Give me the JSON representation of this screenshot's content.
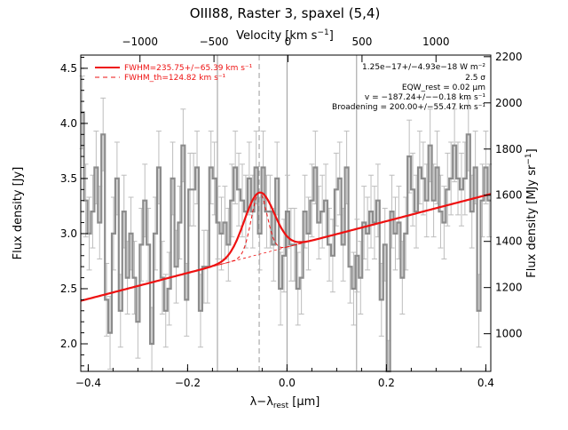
{
  "title": "OIII88, Raster 3, spaxel (5,4)",
  "chart_data": {
    "type": "line",
    "title": "OIII88, Raster 3, spaxel (5,4)",
    "xlabel": "λ−λ_rest [μm]",
    "ylabel_left": "Flux density [Jy]",
    "ylabel_right": "Flux density [MJy sr⁻¹]",
    "xlabel_top": "Velocity [km s⁻¹]",
    "xlim": [
      -0.415,
      0.41
    ],
    "ylim": [
      1.75,
      4.62
    ],
    "right_ylim": [
      837,
      2207
    ],
    "top_xlim": [
      -1400,
      1370
    ],
    "x_ticks": [
      -0.4,
      -0.2,
      0.0,
      0.2,
      0.4
    ],
    "x_tick_labels": [
      "−0.4",
      "−0.2",
      "0.0",
      "0.2",
      "0.4"
    ],
    "y_ticks": [
      2.0,
      2.5,
      3.0,
      3.5,
      4.0,
      4.5
    ],
    "y_tick_labels": [
      "2.0",
      "2.5",
      "3.0",
      "3.5",
      "4.0",
      "4.5"
    ],
    "right_ticks": [
      1000,
      1200,
      1400,
      1600,
      1800,
      2000,
      2200
    ],
    "right_tick_labels": [
      "1000",
      "1200",
      "1400",
      "1600",
      "1800",
      "2000",
      "2200"
    ],
    "top_ticks": [
      -1000,
      -500,
      0,
      500,
      1000
    ],
    "top_tick_labels": [
      "−1000",
      "−500",
      "0",
      "500",
      "1000"
    ],
    "vlines_solid": [
      -0.14,
      0.0,
      0.14
    ],
    "vline_dashed": -0.056,
    "legend": [
      {
        "label": "FWHM=235.75+/−65.39 km s⁻¹",
        "style": "solid"
      },
      {
        "label": "FWHM_th=124.82 km s⁻¹",
        "style": "dashed"
      }
    ],
    "annotations": [
      "1.25e−17+/−4.93e−18 W m⁻²",
      "2.5 σ",
      "EQW_rest = 0.02 μm",
      "v = −187.24+/−−0.18 km s⁻¹",
      "Broadening = 200.00+/−55.47 km s⁻¹"
    ],
    "colors": {
      "data": "#8c8c8c",
      "error": "#bdbdbd",
      "fit": "#ee1111"
    },
    "fit": {
      "continuum_start": 2.39,
      "continuum_end": 3.36,
      "gauss_center": -0.056,
      "gauss_amp": 0.56,
      "gauss_sigma": 0.03
    },
    "series": [
      {
        "x": [
          -0.412,
          -0.405,
          -0.398,
          -0.391,
          -0.384,
          -0.377,
          -0.37,
          -0.363,
          -0.356,
          -0.349,
          -0.342,
          -0.335,
          -0.328,
          -0.321,
          -0.314,
          -0.307,
          -0.3,
          -0.293,
          -0.286,
          -0.279,
          -0.272,
          -0.265,
          -0.258,
          -0.251,
          -0.244,
          -0.237,
          -0.23,
          -0.223,
          -0.216,
          -0.209,
          -0.202,
          -0.195,
          -0.188,
          -0.181,
          -0.174,
          -0.167,
          -0.16,
          -0.153,
          -0.146,
          -0.139,
          -0.132,
          -0.125,
          -0.118,
          -0.111,
          -0.104,
          -0.097,
          -0.09,
          -0.083,
          -0.076,
          -0.069,
          -0.062,
          -0.055,
          -0.048,
          -0.041,
          -0.034,
          -0.027,
          -0.02,
          -0.013,
          -0.006,
          0.001,
          0.008,
          0.015,
          0.022,
          0.029,
          0.036,
          0.043,
          0.05,
          0.057,
          0.064,
          0.071,
          0.078,
          0.085,
          0.092,
          0.099,
          0.106,
          0.113,
          0.12,
          0.127,
          0.134,
          0.141,
          0.148,
          0.155,
          0.162,
          0.169,
          0.176,
          0.183,
          0.19,
          0.197,
          0.204,
          0.211,
          0.218,
          0.225,
          0.232,
          0.239,
          0.246,
          0.253,
          0.26,
          0.267,
          0.274,
          0.281,
          0.288,
          0.295,
          0.302,
          0.309,
          0.316,
          0.323,
          0.33,
          0.337,
          0.344,
          0.351,
          0.358,
          0.365,
          0.372,
          0.379,
          0.386,
          0.393,
          0.4,
          0.407
        ],
        "y": [
          4.1,
          3.3,
          3.0,
          3.2,
          3.6,
          3.1,
          3.9,
          2.4,
          2.1,
          3.0,
          3.5,
          2.3,
          3.2,
          2.6,
          3.0,
          2.6,
          2.2,
          2.9,
          3.3,
          2.9,
          2.0,
          3.0,
          3.6,
          2.6,
          2.3,
          2.5,
          3.5,
          2.7,
          3.1,
          3.8,
          2.4,
          3.4,
          3.4,
          3.6,
          2.3,
          2.7,
          2.7,
          3.6,
          3.5,
          3.1,
          3.0,
          3.1,
          2.9,
          3.3,
          3.6,
          3.4,
          3.3,
          3.2,
          3.5,
          3.2,
          3.6,
          3.0,
          3.6,
          3.2,
          3.2,
          2.9,
          3.5,
          2.5,
          2.8,
          3.2,
          2.9,
          2.9,
          2.5,
          2.6,
          3.2,
          3.0,
          3.3,
          3.6,
          3.1,
          3.2,
          3.3,
          2.9,
          2.8,
          3.4,
          3.5,
          2.9,
          3.6,
          2.7,
          2.5,
          2.8,
          2.6,
          3.1,
          3.0,
          3.2,
          3.1,
          3.3,
          2.4,
          2.9,
          1.7,
          3.2,
          3.0,
          3.1,
          2.6,
          3.0,
          3.7,
          3.4,
          3.2,
          3.6,
          3.5,
          3.3,
          3.8,
          3.3,
          3.6,
          3.2,
          3.1,
          3.4,
          3.5,
          3.8,
          3.5,
          3.4,
          3.5,
          3.9,
          3.2,
          3.6,
          2.3,
          3.3,
          3.6,
          3.3
        ],
        "err": 0.33
      }
    ]
  }
}
